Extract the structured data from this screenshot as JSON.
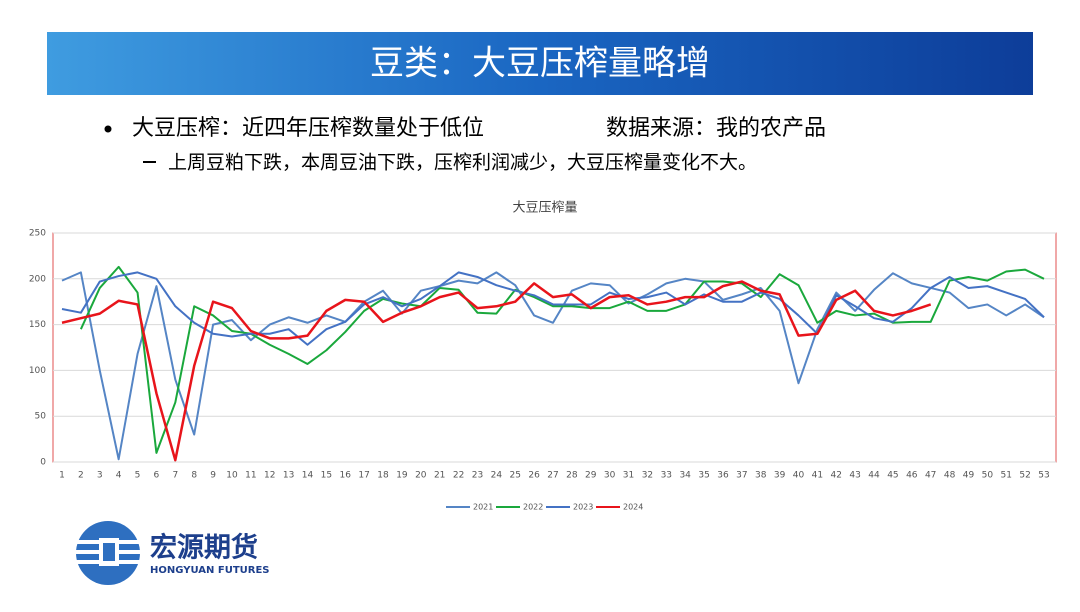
{
  "header": {
    "title": "豆类：大豆压榨量略增"
  },
  "bullets": [
    {
      "text": "大豆压榨：近四年压榨数量处于低位",
      "source": "数据来源：我的农产品",
      "sub": "上周豆粕下跌，本周豆油下跌，压榨利润减少，大豆压榨量变化不大。"
    }
  ],
  "logo": {
    "name": "宏源期货",
    "english": "HONGYUAN FUTURES"
  },
  "chart_data": {
    "type": "line",
    "title": "大豆压榨量",
    "categories": [
      1,
      2,
      3,
      4,
      5,
      6,
      7,
      8,
      9,
      10,
      11,
      12,
      13,
      14,
      15,
      16,
      17,
      18,
      19,
      20,
      21,
      22,
      23,
      24,
      25,
      26,
      27,
      28,
      29,
      30,
      31,
      32,
      33,
      34,
      35,
      36,
      37,
      38,
      39,
      40,
      41,
      42,
      43,
      44,
      45,
      46,
      47,
      48,
      49,
      50,
      51,
      52,
      53
    ],
    "ylim": [
      0,
      250
    ],
    "yticks": [
      0,
      50,
      100,
      150,
      200,
      250
    ],
    "grid": true,
    "legend": "bottom",
    "series": [
      {
        "name": "2021",
        "color": "#5585c5",
        "values": [
          198,
          207,
          100,
          3,
          118,
          192,
          90,
          30,
          150,
          155,
          133,
          150,
          158,
          152,
          160,
          153,
          175,
          187,
          162,
          187,
          192,
          198,
          195,
          207,
          193,
          160,
          152,
          187,
          195,
          193,
          173,
          183,
          195,
          200,
          197,
          177,
          183,
          190,
          165,
          86,
          145,
          185,
          165,
          188,
          206,
          195,
          190,
          185,
          168,
          172,
          160,
          172,
          158
        ]
      },
      {
        "name": "2022",
        "color": "#1aa83c",
        "values": [
          null,
          145,
          190,
          213,
          185,
          10,
          65,
          170,
          160,
          143,
          140,
          128,
          118,
          107,
          122,
          142,
          165,
          178,
          173,
          170,
          190,
          188,
          163,
          162,
          188,
          180,
          170,
          170,
          168,
          168,
          175,
          165,
          165,
          172,
          197,
          197,
          195,
          180,
          205,
          193,
          152,
          165,
          160,
          162,
          152,
          153,
          153,
          198,
          202,
          198,
          208,
          210,
          200
        ]
      },
      {
        "name": "2023",
        "color": "#4472c4",
        "values": [
          167,
          163,
          197,
          203,
          207,
          200,
          170,
          152,
          140,
          137,
          140,
          140,
          145,
          128,
          145,
          153,
          172,
          180,
          170,
          178,
          192,
          207,
          202,
          193,
          187,
          182,
          172,
          172,
          172,
          185,
          178,
          180,
          185,
          172,
          183,
          175,
          175,
          185,
          178,
          160,
          140,
          182,
          170,
          157,
          153,
          168,
          190,
          202,
          190,
          192,
          185,
          178,
          158
        ]
      },
      {
        "name": "2024",
        "color": "#e8141b",
        "values": [
          152,
          157,
          162,
          176,
          172,
          75,
          2,
          105,
          175,
          168,
          143,
          135,
          135,
          138,
          165,
          177,
          175,
          153,
          163,
          170,
          180,
          185,
          168,
          170,
          175,
          195,
          180,
          183,
          168,
          180,
          182,
          172,
          175,
          180,
          180,
          192,
          197,
          187,
          183,
          138,
          140,
          177,
          187,
          165,
          160,
          165,
          172,
          null,
          null,
          null,
          null,
          null,
          null
        ]
      }
    ]
  }
}
